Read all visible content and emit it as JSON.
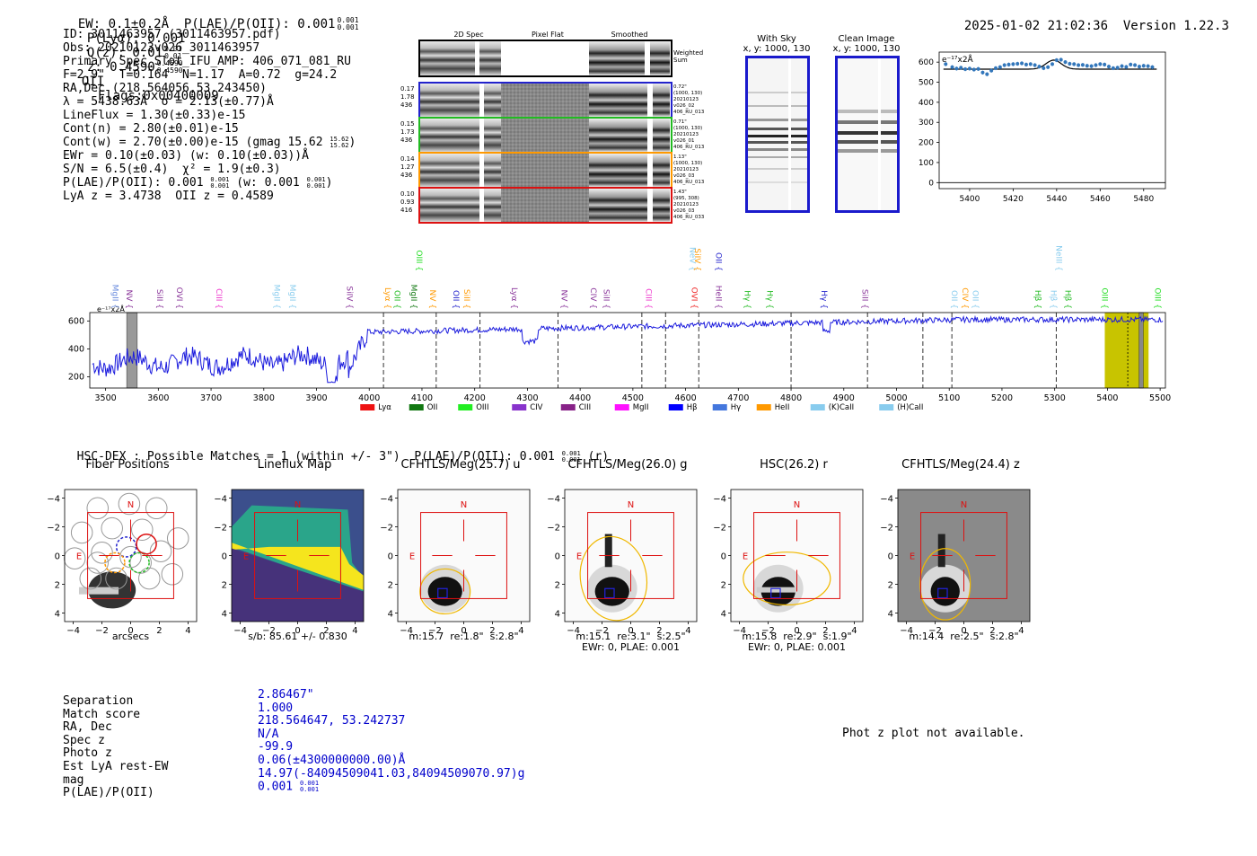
{
  "header": {
    "left": "EW: 0.1±0.2Å  P(LAE)/P(OII): 0.001",
    "plae_sup": "0.001",
    "plae_sub": "0.001",
    "plya": "P(Lyα): 0.001",
    "qz": "Q(z): 0.01",
    "qz_sup": "0.01",
    "qz_sub": "0.01",
    "z": "z: 0.4590",
    "z_sup": "0.4590",
    "z_sub": "0.4590",
    "z_line": "OII",
    "flags": "Flags:0x00400009",
    "datetime": "2025-01-02 21:02:36",
    "version": "Version 1.22.3"
  },
  "info": [
    "ID: 3011463957 (3011463957.pdf)",
    "Obs: 20210123v026_3011463957",
    "Primary Spec_Slot_IFU_AMP: 406_071_081_RU",
    "F=2.9\"  T=0.164  N=1.17  A=0.72  g=24.2",
    "RA,Dec (218.564056,53.243450)",
    "λ = 5438.63Å  σ = 2.13(±0.77)Å",
    "LineFlux = 1.30(±0.33)e-15",
    "Cont(n) = 2.80(±0.01)e-15",
    "Cont(w) = 2.70(±0.00)e-15 (gmag 15.62",
    "EWr = 0.10(±0.03) (w: 0.10(±0.03))Å",
    "S/N = 6.5(±0.4)  χ² = 1.9(±0.3)",
    "P(LAE)/P(OII): 0.001",
    "LyA z = 3.4738  OII z = 0.4589"
  ],
  "info_fracs": {
    "gmag_sup": "15.62",
    "gmag_sub": "15.62",
    "plae_sup": "0.001",
    "plae_sub": "0.001",
    "plae_w": "(w: 0.001",
    "plae_w_sup": "0.001",
    "plae_w_sub": "0.001"
  },
  "spec2d": {
    "col_2d": "2D Spec",
    "col_flat": "Pixel Flat",
    "col_smooth": "Smoothed",
    "weighted_sum": "Weighted Sum",
    "rows": [
      {
        "left": [
          "0.17",
          "1.78",
          "436"
        ],
        "right": [
          "0.72\"",
          "(1000, 130)",
          "20210123",
          "v026_02",
          "406_RU_013"
        ],
        "color": "#2222cc"
      },
      {
        "left": [
          "0.15",
          "1.73",
          "436"
        ],
        "right": [
          "0.71\"",
          "(1000, 130)",
          "20210123",
          "v026_01",
          "406_RU_013"
        ],
        "color": "#22bb22"
      },
      {
        "left": [
          "0.14",
          "1.27",
          "436"
        ],
        "right": [
          "1.13\"",
          "(1000, 130)",
          "20210123",
          "v026_03",
          "406_RU_013"
        ],
        "color": "#ff9900"
      },
      {
        "left": [
          "0.10",
          "0.93",
          "416"
        ],
        "right": [
          "1.43\"",
          "(995, 308)",
          "20210123",
          "v026_03",
          "406_RU_033"
        ],
        "color": "#dd1111"
      }
    ]
  },
  "sky": {
    "with_sky_title": "With Sky",
    "with_sky_xy": "x, y: 1000, 130",
    "clean_title": "Clean Image",
    "clean_xy": "x, y: 1000, 130"
  },
  "zoom_chart": {
    "type": "scatter",
    "ylabel_inset": "e⁻¹⁷x2Å",
    "xlim": [
      5386,
      5490
    ],
    "ylim": [
      -30,
      650
    ],
    "xticks": [
      5400,
      5420,
      5440,
      5460,
      5480
    ],
    "yticks": [
      0,
      100,
      200,
      300,
      400,
      500,
      600
    ],
    "x": [
      5389,
      5392,
      5394,
      5396,
      5398,
      5400,
      5402,
      5404,
      5406,
      5408,
      5410,
      5412,
      5414,
      5416,
      5418,
      5420,
      5422,
      5424,
      5426,
      5428,
      5430,
      5432,
      5434,
      5436,
      5438,
      5440,
      5442,
      5444,
      5446,
      5448,
      5450,
      5452,
      5454,
      5456,
      5458,
      5460,
      5462,
      5464,
      5466,
      5468,
      5470,
      5472,
      5474,
      5476,
      5478,
      5480,
      5482,
      5484
    ],
    "y": [
      590,
      575,
      568,
      572,
      565,
      568,
      563,
      566,
      548,
      540,
      558,
      570,
      575,
      585,
      588,
      590,
      592,
      594,
      588,
      590,
      585,
      578,
      570,
      575,
      590,
      610,
      612,
      600,
      592,
      590,
      585,
      586,
      582,
      580,
      585,
      590,
      588,
      578,
      570,
      572,
      580,
      576,
      588,
      585,
      578,
      582,
      580,
      575
    ],
    "fit_baseline": 565,
    "fit_peak_x": 5438.63,
    "fit_peak_amp": 45,
    "fit_sigma": 3.5
  },
  "spectrum": {
    "type": "line",
    "xlim": [
      3470,
      5510
    ],
    "ylim": [
      120,
      660
    ],
    "xticks": [
      3500,
      3600,
      3700,
      3800,
      3900,
      4000,
      4100,
      4200,
      4300,
      4400,
      4500,
      4600,
      4700,
      4800,
      4900,
      5000,
      5100,
      5200,
      5300,
      5400,
      5500
    ],
    "yticks": [
      200,
      400,
      600
    ],
    "inset_label": "e⁻¹⁷x2Å",
    "line_labels": [
      {
        "name": "MgII",
        "x": 3513,
        "color": "#6688dd",
        "row": 1
      },
      {
        "name": "NV",
        "x": 3540,
        "color": "#883399",
        "row": 1
      },
      {
        "name": "SiII",
        "x": 3598,
        "color": "#883399",
        "row": 1
      },
      {
        "name": "OVI",
        "x": 3635,
        "color": "#883399",
        "row": 1
      },
      {
        "name": "CIII",
        "x": 3710,
        "color": "#ee33cc",
        "row": 1
      },
      {
        "name": "MgII",
        "x": 3820,
        "color": "#88ccee",
        "row": 1
      },
      {
        "name": "MgII",
        "x": 3850,
        "color": "#88ccee",
        "row": 1
      },
      {
        "name": "SiIV",
        "x": 3958,
        "color": "#883399",
        "row": 1
      },
      {
        "name": "Lyα",
        "x": 4030,
        "color": "#ff9900",
        "row": 1
      },
      {
        "name": "OII",
        "x": 4048,
        "color": "#22bb22",
        "row": 1
      },
      {
        "name": "MgII",
        "x": 4080,
        "color": "#117711",
        "row": 1
      },
      {
        "name": "OIII",
        "x": 4090,
        "color": "#22dd22",
        "row": 0
      },
      {
        "name": "NV",
        "x": 4115,
        "color": "#ff9900",
        "row": 1
      },
      {
        "name": "OII",
        "x": 4160,
        "color": "#2222cc",
        "row": 1
      },
      {
        "name": "SiII",
        "x": 4180,
        "color": "#ff9900",
        "row": 1
      },
      {
        "name": "Lyα",
        "x": 4270,
        "color": "#883399",
        "row": 1
      },
      {
        "name": "NV",
        "x": 4365,
        "color": "#883399",
        "row": 1
      },
      {
        "name": "CIV",
        "x": 4420,
        "color": "#883399",
        "row": 1
      },
      {
        "name": "SiII",
        "x": 4445,
        "color": "#883399",
        "row": 1
      },
      {
        "name": "CIII",
        "x": 4525,
        "color": "#ee33cc",
        "row": 1
      },
      {
        "name": "OVI",
        "x": 4612,
        "color": "#ee2222",
        "row": 1
      },
      {
        "name": "NeV",
        "x": 4608,
        "color": "#88ccee",
        "row": 0
      },
      {
        "name": "SiIV",
        "x": 4618,
        "color": "#ff9900",
        "row": 0
      },
      {
        "name": "OII",
        "x": 4658,
        "color": "#2222cc",
        "row": 0
      },
      {
        "name": "HeII",
        "x": 4658,
        "color": "#883399",
        "row": 1
      },
      {
        "name": "Hγ",
        "x": 4712,
        "color": "#22bb22",
        "row": 1
      },
      {
        "name": "Hγ",
        "x": 4755,
        "color": "#22bb22",
        "row": 1
      },
      {
        "name": "Hγ",
        "x": 4858,
        "color": "#2222cc",
        "row": 1
      },
      {
        "name": "SiII",
        "x": 4935,
        "color": "#883399",
        "row": 1
      },
      {
        "name": "OII",
        "x": 5105,
        "color": "#88ccee",
        "row": 1
      },
      {
        "name": "CIV",
        "x": 5125,
        "color": "#ff9900",
        "row": 1
      },
      {
        "name": "OII",
        "x": 5145,
        "color": "#88ccee",
        "row": 1
      },
      {
        "name": "Hβ",
        "x": 5263,
        "color": "#22bb22",
        "row": 1
      },
      {
        "name": "Hβ",
        "x": 5293,
        "color": "#88ccee",
        "row": 1
      },
      {
        "name": "NeIII",
        "x": 5303,
        "color": "#88ccee",
        "row": 0
      },
      {
        "name": "Hβ",
        "x": 5320,
        "color": "#22bb22",
        "row": 1
      },
      {
        "name": "OIII",
        "x": 5390,
        "color": "#22dd22",
        "row": 1
      },
      {
        "name": "OIII",
        "x": 5490,
        "color": "#22dd22",
        "row": 1
      }
    ],
    "dashed_x": [
      4027,
      4127,
      4210,
      4358,
      4517,
      4562,
      4625,
      4800,
      4945,
      5050,
      5105,
      5303
    ],
    "yellow_band": [
      5395,
      5478
    ],
    "gray_band_left": [
      3540,
      3560
    ],
    "gray_band_right": [
      5460,
      5468
    ],
    "legend": [
      {
        "name": "Lyα",
        "color": "#ee1111"
      },
      {
        "name": "OII",
        "color": "#117711"
      },
      {
        "name": "OIII",
        "color": "#22ee22"
      },
      {
        "name": "CIV",
        "color": "#8833cc"
      },
      {
        "name": "CIII",
        "color": "#882288"
      },
      {
        "name": "MgII",
        "color": "#ff11ff"
      },
      {
        "name": "Hβ",
        "color": "#0000ff"
      },
      {
        "name": "Hγ",
        "color": "#4477dd"
      },
      {
        "name": "HeII",
        "color": "#ff9900"
      },
      {
        "name": "(K)CaII",
        "color": "#88ccee"
      },
      {
        "name": "(H)CaII",
        "color": "#88ccee"
      }
    ]
  },
  "hsc": {
    "title": "HSC-DEX : Possible Matches = 1 (within +/- 3\")  P(LAE)/P(OII): 0.001",
    "title_sup": "0.001",
    "title_sub": "0.001",
    "title_band": "(r)"
  },
  "cutouts": [
    {
      "title": "Fiber Positions",
      "cap1": "arcsecs",
      "cap2": ""
    },
    {
      "title": "Lineflux Map",
      "cap1": "s/b: 85.61 +/- 0.830",
      "cap2": ""
    },
    {
      "title": "CFHTLS/Meg(25.7) u",
      "cap1": "m:15.7  re:1.8\"  s:2.8\"",
      "cap2": ""
    },
    {
      "title": "CFHTLS/Meg(26.0) g",
      "cap1": "m:15.1  re:3.1\"  s:2.5\"",
      "cap2": "EWr: 0, PLAE: 0.001"
    },
    {
      "title": "HSC(26.2) r",
      "cap1": "m:15.8  re:2.9\"  s:1.9\"",
      "cap2": "EWr: 0, PLAE: 0.001"
    },
    {
      "title": "CFHTLS/Meg(24.4) z",
      "cap1": "m:14.4  re:2.5\"  s:2.8\"",
      "cap2": ""
    }
  ],
  "cutout_axis": {
    "ticks": [
      "−4",
      "−2",
      "0",
      "2",
      "4"
    ],
    "yticks": [
      "4",
      "2",
      "0",
      "−2",
      "−4"
    ],
    "north": "N",
    "east": "E"
  },
  "match_table": {
    "labels": [
      "Separation",
      "Match score",
      "RA, Dec",
      "Spec z",
      "Photo z",
      "Est LyA rest-EW",
      "mag",
      "P(LAE)/P(OII)"
    ],
    "values": [
      "2.86467\"",
      "1.000",
      "218.564647, 53.242737",
      "N/A",
      "-99.9",
      "0.06(±4300000000.00)Å",
      "14.97(-84094509041.03,84094509070.97)g",
      "0.001"
    ],
    "plae_sup": "0.001",
    "plae_sub": "0.001"
  },
  "photz_note": "Phot z plot not available."
}
